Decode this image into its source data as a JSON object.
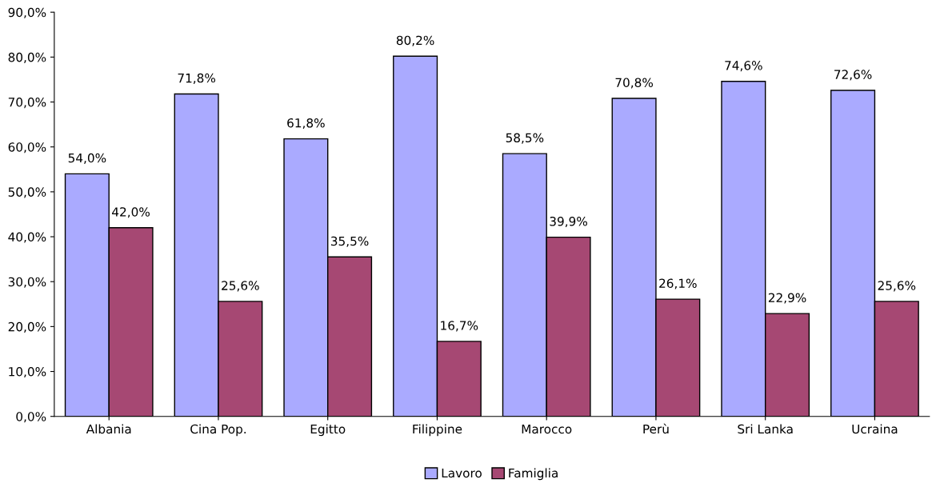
{
  "chart_data": {
    "type": "bar",
    "categories": [
      "Albania",
      "Cina Pop.",
      "Egitto",
      "Filippine",
      "Marocco",
      "Perù",
      "Sri Lanka",
      "Ucraina"
    ],
    "series": [
      {
        "name": "Lavoro",
        "color": "#aaaaff",
        "values": [
          54.0,
          71.8,
          61.8,
          80.2,
          58.5,
          70.8,
          74.6,
          72.6
        ],
        "value_labels": [
          "54,0%",
          "71,8%",
          "61,8%",
          "80,2%",
          "58,5%",
          "70,8%",
          "74,6%",
          "72,6%"
        ]
      },
      {
        "name": "Famiglia",
        "color": "#a64873",
        "values": [
          42.0,
          25.6,
          35.5,
          16.7,
          39.9,
          26.1,
          22.9,
          25.6
        ],
        "value_labels": [
          "42,0%",
          "25,6%",
          "35,5%",
          "16,7%",
          "39,9%",
          "26,1%",
          "22,9%",
          "25,6%"
        ]
      }
    ],
    "ylim": [
      0,
      90
    ],
    "yticks": [
      {
        "value": 0,
        "label": "0,0%"
      },
      {
        "value": 10,
        "label": "10,0%"
      },
      {
        "value": 20,
        "label": "20,0%"
      },
      {
        "value": 30,
        "label": "30,0%"
      },
      {
        "value": 40,
        "label": "40,0%"
      },
      {
        "value": 50,
        "label": "50,0%"
      },
      {
        "value": 60,
        "label": "60,0%"
      },
      {
        "value": 70,
        "label": "70,0%"
      },
      {
        "value": 80,
        "label": "80,0%"
      },
      {
        "value": 90,
        "label": "90,0%"
      }
    ],
    "grid": false,
    "legend": "bottom"
  }
}
